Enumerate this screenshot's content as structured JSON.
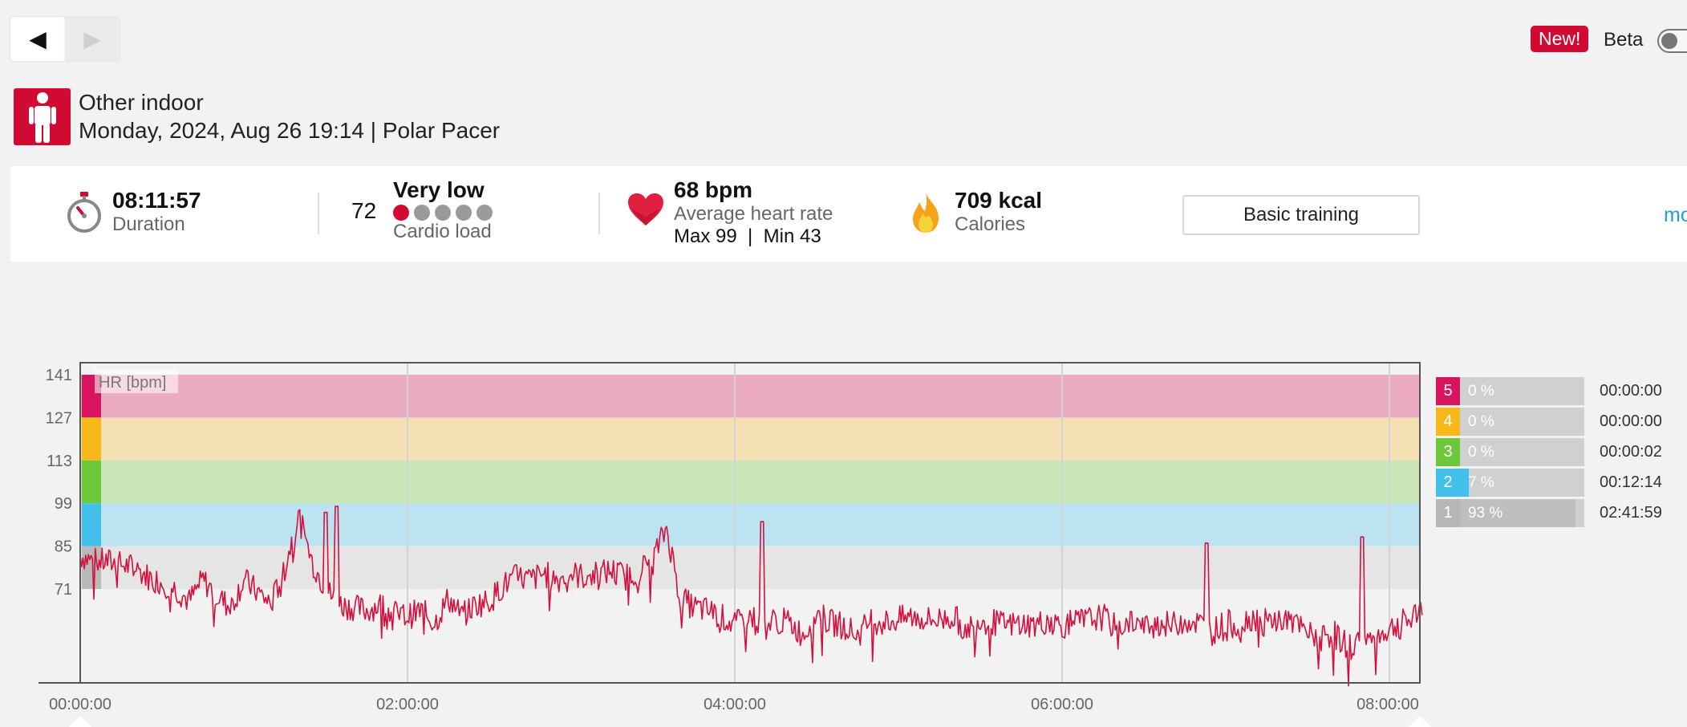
{
  "nav": {
    "prev_icon": "◀",
    "next_icon": "▶"
  },
  "header": {
    "new_badge": "New!",
    "beta_label": "Beta",
    "beta_enabled": false,
    "sport_icon": "person-standing-icon",
    "sport": "Other indoor",
    "date_device": "Monday, 2024, Aug 26 19:14 | Polar Pacer"
  },
  "summary": {
    "duration": {
      "value": "08:11:57",
      "label": "Duration",
      "icon": "stopwatch-icon"
    },
    "cardio_load": {
      "value": "72",
      "level": "Very low",
      "label": "Cardio load",
      "dots_total": 5,
      "dots_active": 1
    },
    "heart_rate": {
      "value": "68 bpm",
      "label": "Average heart rate",
      "max": "Max 99",
      "min": "Min 43",
      "icon": "heart-icon"
    },
    "calories": {
      "value": "709 kcal",
      "label": "Calories",
      "icon": "flame-icon"
    },
    "training_benefit": "Basic training",
    "more_link": "mo"
  },
  "colors": {
    "accent": "#d10a33",
    "hr_line": "#d4113c",
    "zone5": "#d8145e",
    "zone4": "#f6b919",
    "zone3": "#6cc839",
    "zone2": "#43bfe9",
    "zone1": "#b8bab9"
  },
  "chart_data": {
    "type": "line",
    "series_label": "HR [bpm]",
    "y_ticks": [
      141,
      127,
      113,
      99,
      85,
      71
    ],
    "x_ticks": [
      "00:00:00",
      "02:00:00",
      "04:00:00",
      "06:00:00",
      "08:00:00"
    ],
    "duration_min": 492,
    "ylim": [
      40,
      145
    ],
    "zones": [
      {
        "zone": 5,
        "from": 127,
        "to": 141
      },
      {
        "zone": 4,
        "from": 113,
        "to": 127
      },
      {
        "zone": 3,
        "from": 99,
        "to": 113
      },
      {
        "zone": 2,
        "from": 85,
        "to": 99
      },
      {
        "zone": 1,
        "from": 71,
        "to": 85
      }
    ],
    "hr_minutes": [
      0,
      5,
      10,
      15,
      20,
      25,
      30,
      35,
      40,
      45,
      50,
      55,
      60,
      65,
      70,
      75,
      80,
      85,
      90,
      95,
      100,
      105,
      110,
      115,
      120,
      125,
      130,
      135,
      140,
      145,
      150,
      155,
      160,
      165,
      170,
      175,
      180,
      185,
      190,
      195,
      200,
      205,
      210,
      215,
      220,
      225,
      230,
      235,
      240,
      245,
      250,
      255,
      260,
      265,
      270,
      275,
      280,
      285,
      290,
      295,
      300,
      305,
      310,
      315,
      320,
      325,
      330,
      335,
      340,
      345,
      350,
      355,
      360,
      365,
      370,
      375,
      380,
      385,
      390,
      395,
      400,
      405,
      410,
      415,
      420,
      425,
      430,
      435,
      440,
      445,
      450,
      455,
      460,
      465,
      470,
      475,
      480,
      485,
      490
    ],
    "hr_values": [
      82,
      80,
      80,
      79,
      78,
      75,
      73,
      71,
      67,
      74,
      69,
      65,
      74,
      70,
      66,
      78,
      95,
      80,
      71,
      66,
      65,
      64,
      66,
      63,
      62,
      64,
      60,
      68,
      62,
      66,
      67,
      72,
      75,
      74,
      76,
      74,
      76,
      75,
      76,
      77,
      75,
      77,
      81,
      91,
      68,
      65,
      64,
      62,
      59,
      63,
      58,
      61,
      60,
      56,
      63,
      60,
      59,
      56,
      61,
      60,
      61,
      62,
      61,
      61,
      62,
      58,
      61,
      60,
      59,
      60,
      59,
      61,
      59,
      60,
      61,
      62,
      58,
      61,
      58,
      60,
      59,
      61,
      60,
      57,
      60,
      59,
      62,
      60,
      61,
      60,
      56,
      56,
      56,
      52,
      54,
      55,
      58,
      60,
      62
    ],
    "hr_spikes": [
      {
        "minute": 90,
        "value": 96
      },
      {
        "minute": 94,
        "value": 98
      },
      {
        "minute": 250,
        "value": 93
      },
      {
        "minute": 413,
        "value": 86
      },
      {
        "minute": 470,
        "value": 88
      }
    ]
  },
  "zones_summary": [
    {
      "zone": "5",
      "percent": "0 %",
      "fraction": 0,
      "time": "00:00:00"
    },
    {
      "zone": "4",
      "percent": "0 %",
      "fraction": 0,
      "time": "00:00:00"
    },
    {
      "zone": "3",
      "percent": "0 %",
      "fraction": 0,
      "time": "00:00:02"
    },
    {
      "zone": "2",
      "percent": "7 %",
      "fraction": 0.07,
      "time": "00:12:14"
    },
    {
      "zone": "1",
      "percent": "93 %",
      "fraction": 0.93,
      "time": "02:41:59"
    }
  ]
}
